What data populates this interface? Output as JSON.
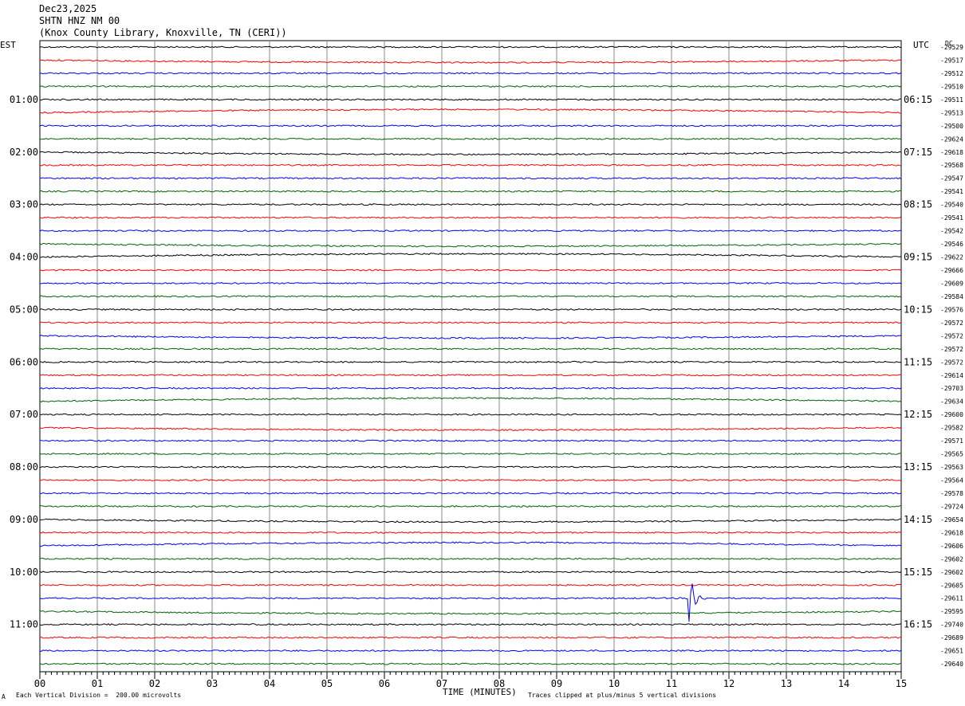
{
  "header": {
    "date": "Dec23,2025",
    "station": "SHTN HNZ NM 00",
    "location": "(Knox County Library, Knoxville, TN (CERI))"
  },
  "left_tz": "EST",
  "right_tz": "UTC",
  "dc_label": "DC",
  "footer": {
    "time_axis_label": "TIME (MINUTES)",
    "vertical_division": "Each Vertical Division =  200.00 microvolts",
    "clip_note": "Traces clipped at plus/minus 5 vertical divisions",
    "corner_mark": "A"
  },
  "colors": {
    "c0": "#000000",
    "c1": "#ff0000",
    "c2": "#0000ff",
    "c3": "#006400"
  },
  "chart_data": {
    "type": "line",
    "title": "SHTN HNZ NM 00",
    "xlabel": "TIME (MINUTES)",
    "x_ticks": [
      "00",
      "01",
      "02",
      "03",
      "04",
      "05",
      "06",
      "07",
      "08",
      "09",
      "10",
      "11",
      "12",
      "13",
      "14",
      "15"
    ],
    "xlim": [
      0,
      15
    ],
    "est_hour_labels": [
      "01:00",
      "02:00",
      "03:00",
      "04:00",
      "05:00",
      "06:00",
      "07:00",
      "08:00",
      "09:00",
      "10:00",
      "11:00"
    ],
    "utc_hour_labels": [
      "06:15",
      "07:15",
      "08:15",
      "09:15",
      "10:15",
      "11:15",
      "12:15",
      "13:15",
      "14:15",
      "15:15",
      "16:15"
    ],
    "trace_color_cycle": [
      "black",
      "red",
      "blue",
      "green"
    ],
    "dc_offsets": [
      "-29529",
      "-29517",
      "-29512",
      "-29510",
      "-29511",
      "-29513",
      "-29500",
      "-29624",
      "-29618",
      "-29568",
      "-29547",
      "-29541",
      "-29540",
      "-29541",
      "-29542",
      "-29546",
      "-29622",
      "-29666",
      "-29609",
      "-29584",
      "-29576",
      "-29572",
      "-29572",
      "-29572",
      "-29572",
      "-29614",
      "-29703",
      "-29634",
      "-29600",
      "-29582",
      "-29571",
      "-29565",
      "-29563",
      "-29564",
      "-29578",
      "-29724",
      "-29654",
      "-29618",
      "-29606",
      "-29602",
      "-29602",
      "-29605",
      "-29611",
      "-29595",
      "-29740",
      "-29689",
      "-29651",
      "-29640"
    ],
    "events": [
      {
        "trace_index": 42,
        "minute": 11.3,
        "amplitude_divisions": 4.5,
        "note": "seismic event"
      }
    ]
  }
}
